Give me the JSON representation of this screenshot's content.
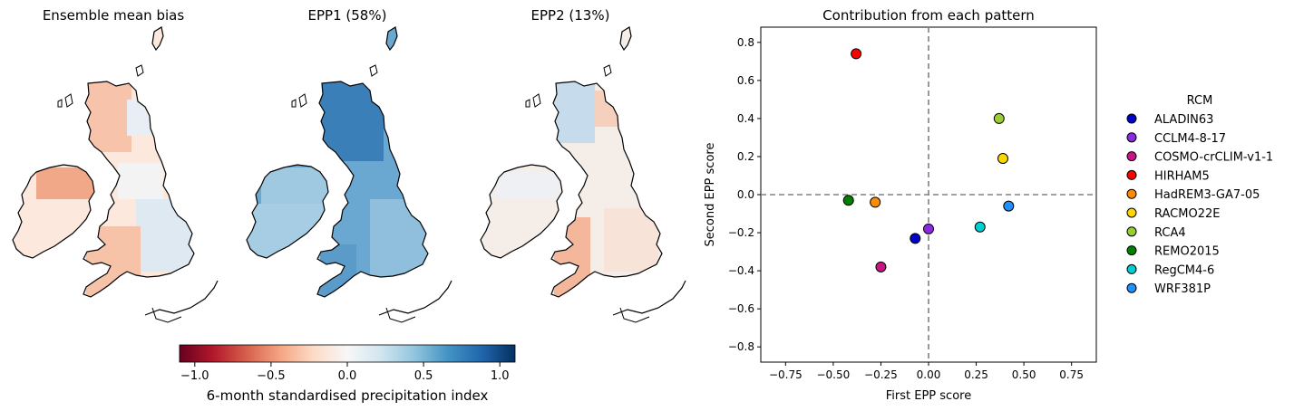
{
  "maps": [
    {
      "title": "Ensemble mean bias"
    },
    {
      "title": "EPP1 (58%)"
    },
    {
      "title": "EPP2 (13%)"
    }
  ],
  "colorbar": {
    "label": "6-month standardised precipitation index",
    "range": [
      -1.1,
      1.1
    ],
    "ticks": [
      "−1.0",
      "−0.5",
      "0.0",
      "0.5",
      "1.0"
    ],
    "tick_values": [
      -1.0,
      -0.5,
      0.0,
      0.5,
      1.0
    ],
    "colors": [
      "#67001f",
      "#b2182b",
      "#d6604d",
      "#f4a582",
      "#fddbc7",
      "#f7f7f7",
      "#d1e5f0",
      "#92c5de",
      "#4393c3",
      "#2166ac",
      "#053061"
    ]
  },
  "chart_data": {
    "type": "scatter",
    "title": "Contribution from each pattern",
    "xlabel": "First EPP score",
    "ylabel": "Second EPP score",
    "xlim": [
      -0.88,
      0.88
    ],
    "ylim": [
      -0.88,
      0.88
    ],
    "xticks": [
      -0.75,
      -0.5,
      -0.25,
      0.0,
      0.25,
      0.5,
      0.75
    ],
    "xtick_labels": [
      "−0.75",
      "−0.50",
      "−0.25",
      "0.00",
      "0.25",
      "0.50",
      "0.75"
    ],
    "yticks": [
      -0.8,
      -0.6,
      -0.4,
      -0.2,
      0.0,
      0.2,
      0.4,
      0.6,
      0.8
    ],
    "ytick_labels": [
      "−0.8",
      "−0.6",
      "−0.4",
      "−0.2",
      "0.0",
      "0.2",
      "0.4",
      "0.6",
      "0.8"
    ],
    "legend_title": "RCM",
    "legend_position": "right",
    "reference_lines": {
      "x": 0.0,
      "y": 0.0
    },
    "points": [
      {
        "name": "ALADIN63",
        "x": -0.07,
        "y": -0.23,
        "color": "#0000cd"
      },
      {
        "name": "CCLM4-8-17",
        "x": 0.0,
        "y": -0.18,
        "color": "#8a2be2"
      },
      {
        "name": "COSMO-crCLIM-v1-1",
        "x": -0.25,
        "y": -0.38,
        "color": "#c71585"
      },
      {
        "name": "HIRHAM5",
        "x": -0.38,
        "y": 0.74,
        "color": "#ff0000"
      },
      {
        "name": "HadREM3-GA7-05",
        "x": -0.28,
        "y": -0.04,
        "color": "#ff8c00"
      },
      {
        "name": "RACMO22E",
        "x": 0.39,
        "y": 0.19,
        "color": "#ffd700"
      },
      {
        "name": "RCA4",
        "x": 0.37,
        "y": 0.4,
        "color": "#9acd32"
      },
      {
        "name": "REMO2015",
        "x": -0.42,
        "y": -0.03,
        "color": "#008000"
      },
      {
        "name": "RegCM4-6",
        "x": 0.27,
        "y": -0.17,
        "color": "#00ced1"
      },
      {
        "name": "WRF381P",
        "x": 0.42,
        "y": -0.06,
        "color": "#1e90ff"
      }
    ]
  }
}
